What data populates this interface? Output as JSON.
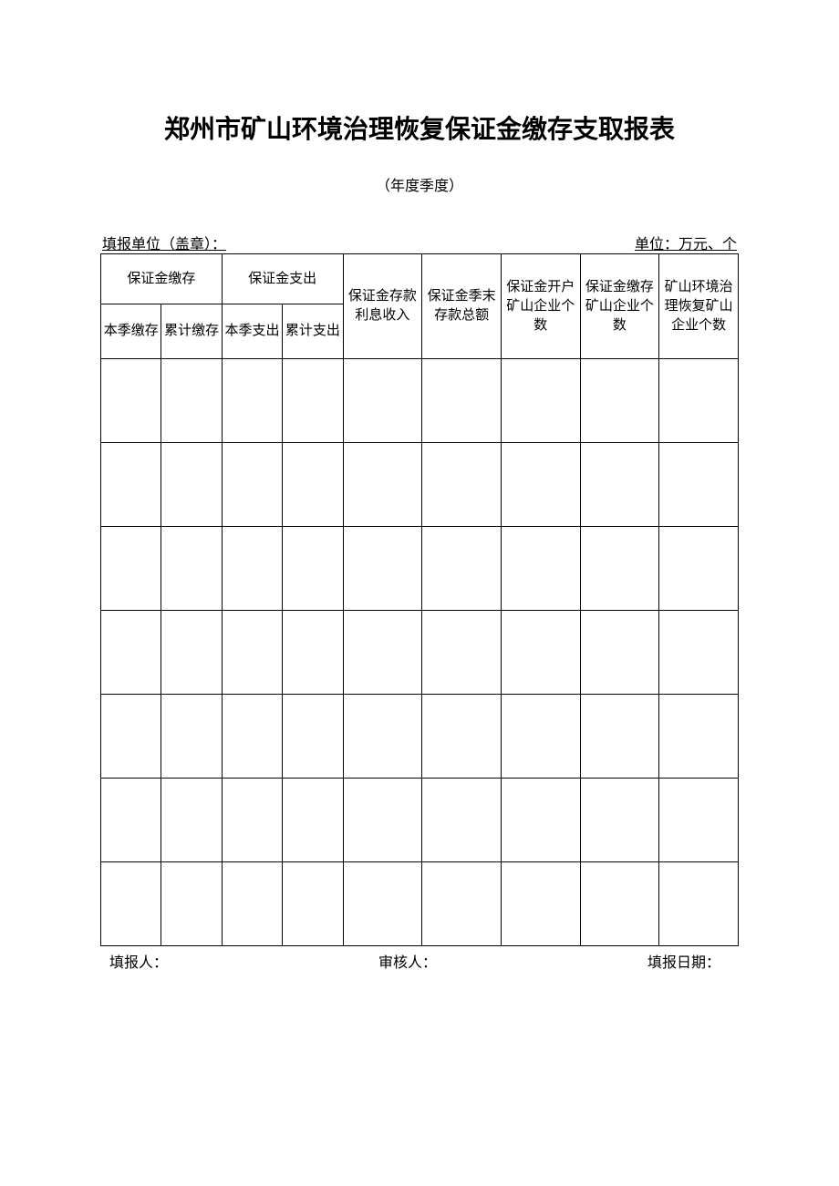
{
  "document": {
    "title": "郑州市矿山环境治理恢复保证金缴存支取报表",
    "subtitle": "（年度季度）",
    "header_left": "填报单位（盖章）：",
    "header_right": "单位：万元、个"
  },
  "table": {
    "background_color": "#ffffff",
    "border_color": "#000000",
    "text_color": "#000000",
    "header_fontsize": 15,
    "columns": {
      "group1": "保证金缴存",
      "group1_sub1": "本季缴存",
      "group1_sub2": "累计缴存",
      "group2": "保证金支出",
      "group2_sub1": "本季支出",
      "group2_sub2": "累计支出",
      "col3": "保证金存款利息收入",
      "col4": "保证金季末存款总额",
      "col5": "保证金开户矿山企业个数",
      "col6": "保证金缴存矿山企业个数",
      "col7": "矿山环境治理恢复矿山企业个数"
    },
    "data_rows": 7,
    "rows": [
      [
        "",
        "",
        "",
        "",
        "",
        "",
        "",
        "",
        ""
      ],
      [
        "",
        "",
        "",
        "",
        "",
        "",
        "",
        "",
        ""
      ],
      [
        "",
        "",
        "",
        "",
        "",
        "",
        "",
        "",
        ""
      ],
      [
        "",
        "",
        "",
        "",
        "",
        "",
        "",
        "",
        ""
      ],
      [
        "",
        "",
        "",
        "",
        "",
        "",
        "",
        "",
        ""
      ],
      [
        "",
        "",
        "",
        "",
        "",
        "",
        "",
        "",
        ""
      ],
      [
        "",
        "",
        "",
        "",
        "",
        "",
        "",
        "",
        ""
      ]
    ]
  },
  "footer": {
    "reporter_label": "填报人：",
    "reviewer_label": "审核人：",
    "date_label": "填报日期："
  }
}
